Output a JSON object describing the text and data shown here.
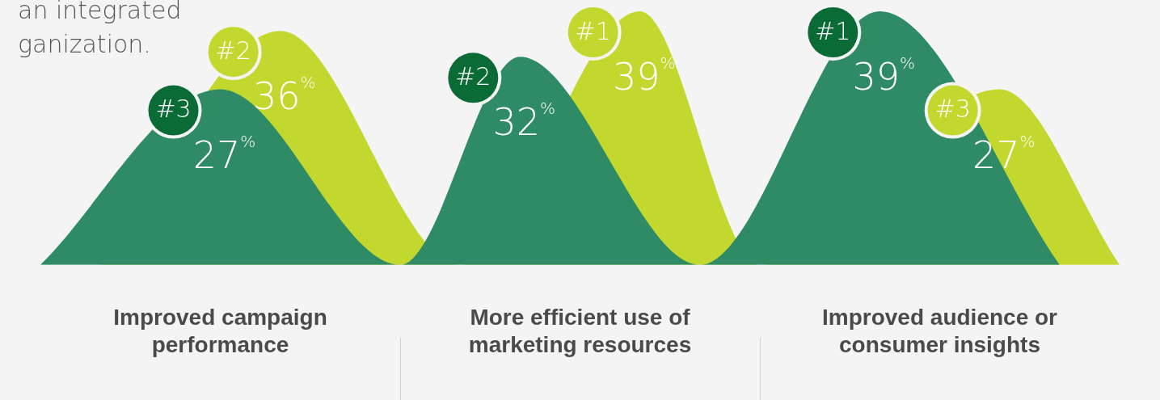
{
  "chart_data": {
    "type": "area",
    "categories": [
      null,
      null,
      null,
      "Improved campaign performance",
      null,
      null,
      null,
      null,
      null,
      "More efficient use of marketing resources",
      null,
      null,
      null,
      null,
      null,
      "Improved audience or consumer insights",
      null,
      null,
      null
    ],
    "series": [
      {
        "color": "#2f8a66",
        "values": [
          0,
          null,
          null,
          27,
          null,
          null,
          0,
          null,
          32,
          null,
          null,
          0,
          null,
          null,
          39,
          null,
          null,
          0,
          null
        ],
        "value_labels": [
          null,
          null,
          null,
          "27%",
          null,
          null,
          null,
          null,
          "32%",
          null,
          null,
          null,
          null,
          null,
          "39%",
          null,
          null,
          null,
          null
        ]
      },
      {
        "color": "#c2d82e",
        "values": [
          null,
          0,
          null,
          null,
          36,
          null,
          null,
          0,
          null,
          null,
          39,
          null,
          0,
          null,
          null,
          null,
          27,
          null,
          0
        ],
        "value_labels": [
          null,
          null,
          null,
          null,
          "36%",
          null,
          null,
          null,
          null,
          null,
          "39%",
          null,
          null,
          null,
          null,
          null,
          "27%",
          null,
          null
        ]
      }
    ],
    "annotations": [
      "an integrated",
      "ganization.",
      "#3",
      "#2",
      "#1",
      "#2",
      "#1",
      "#3"
    ],
    "legend": false,
    "grid": false
  }
}
